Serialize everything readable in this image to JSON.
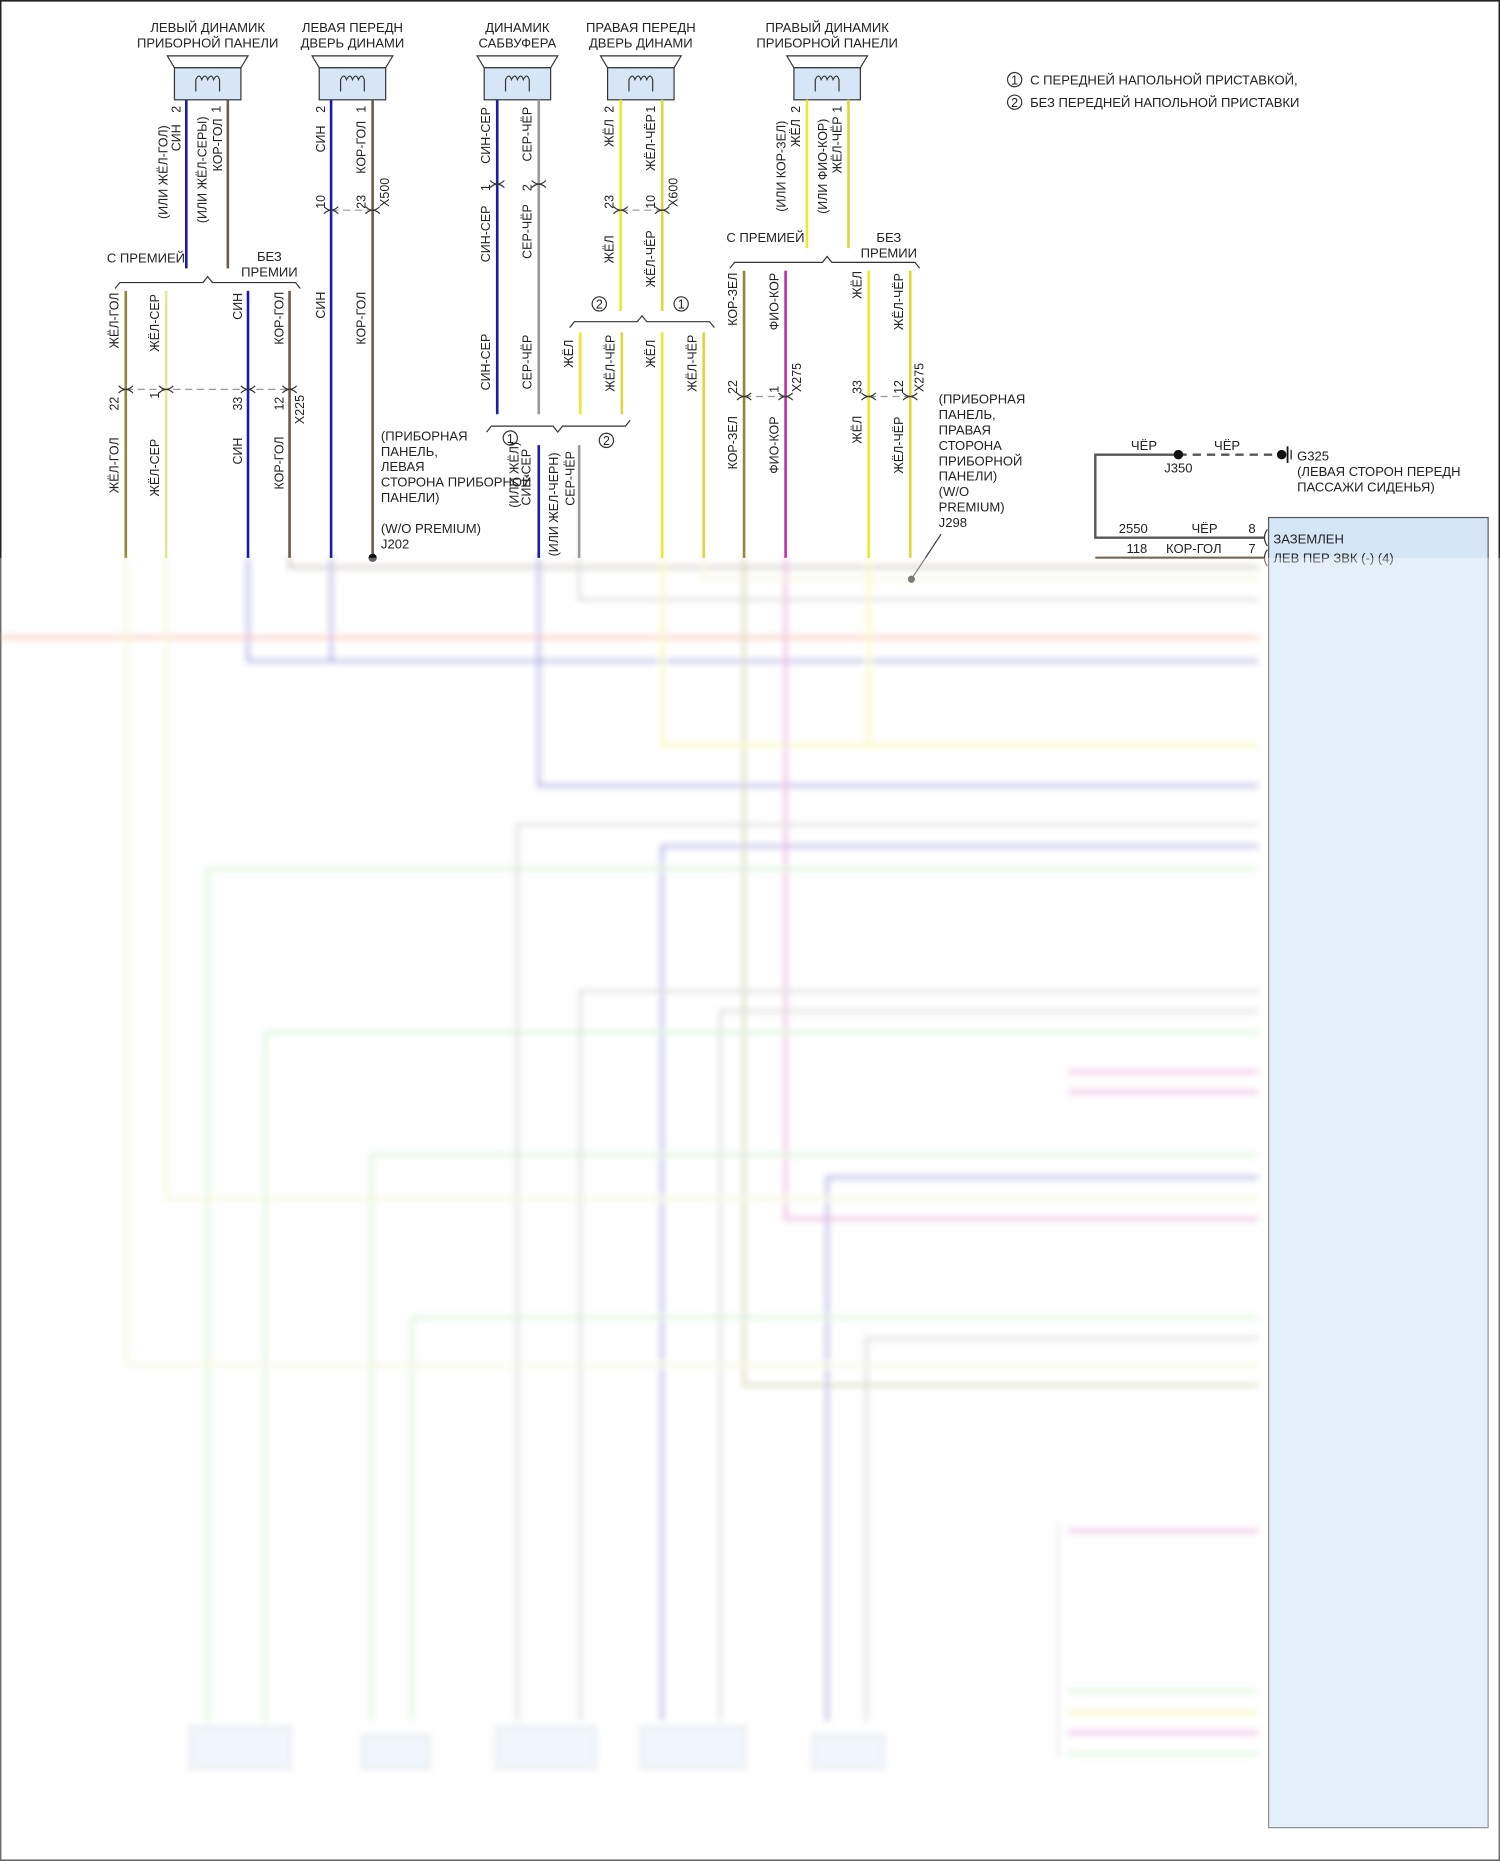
{
  "speakers": [
    {
      "line1": "ЛЕВЫЙ ДИНАМИК",
      "line2": "ПРИБОРНОЙ ПАНЕЛИ"
    },
    {
      "line1": "ЛЕВАЯ ПЕРЕДН",
      "line2": "ДВЕРЬ ДИНАМИ"
    },
    {
      "line1": "ДИНАМИК",
      "line2": "САБВУФЕРА"
    },
    {
      "line1": "ПРАВАЯ ПЕРЕДН",
      "line2": "ДВЕРЬ ДИНАМИ"
    },
    {
      "line1": "ПРАВЫЙ ДИНАМИК",
      "line2": "ПРИБОРНОЙ ПАНЕЛИ"
    }
  ],
  "legend": {
    "n1": "1",
    "t1": "С ПЕРЕДНЕЙ НАПОЛЬНОЙ ПРИСТАВКОЙ,",
    "n2": "2",
    "t2": "БЕЗ ПЕРЕДНЕЙ НАПОЛЬНОЙ ПРИСТАВКИ"
  },
  "options": {
    "premium": "С ПРЕМИЕЙ",
    "no_premium_1": "БЕЗ",
    "no_premium_2": "ПРЕМИИ"
  },
  "pins": {
    "p1": "1",
    "p2": "2",
    "p10": "10",
    "p12": "12",
    "p22": "22",
    "p23": "23",
    "p33": "33"
  },
  "connectors": {
    "x225": "X225",
    "x500": "X500",
    "x600": "X600",
    "x275": "X275"
  },
  "wire_colors": {
    "sin": "СИН",
    "kor_gol": "КОР-ГОЛ",
    "zhel_gol": "ЖЁЛ-ГОЛ",
    "zhel_ser": "ЖЁЛ-СЕР",
    "sin_ser": "СИН-СЕР",
    "ser_cher": "СЕР-ЧЁР",
    "zhel": "ЖЁЛ",
    "zhel_cher": "ЖЁЛ-ЧЁР",
    "kor_zel": "КОР-ЗЕЛ",
    "fio_kor": "ФИО-КОР",
    "cher": "ЧЁР",
    "alt_zhel_gol": "(ИЛИ ЖЁЛ-ГОЛ)",
    "alt_zhel_sery": "(ИЛИ ЖЁЛ-СЕРЫ)",
    "alt_zhel": "(ИЛИ ЖЁЛ)",
    "alt_zhel_chern": "(ИЛИ ЖЕЛ-ЧЕРН)",
    "alt_kor_zel": "(ИЛИ КОР-ЗЕЛ)",
    "alt_fio_kor": "(ИЛИ ФИО-КОР)"
  },
  "splices": {
    "j202": [
      "(ПРИБОРНАЯ",
      "ПАНЕЛЬ,",
      "ЛЕВАЯ",
      "СТОРОНА ПРИБОРНОЙ",
      "ПАНЕЛИ)",
      "(W/O PREMIUM)",
      "J202"
    ],
    "j298": [
      "(ПРИБОРНАЯ",
      "ПАНЕЛЬ,",
      "ПРАВАЯ",
      "СТОРОНА",
      "ПРИБОРНОЙ",
      "ПАНЕЛИ)",
      "(W/O",
      "PREMIUM)",
      "J298"
    ],
    "j350": "J350"
  },
  "ground": {
    "id": "G325",
    "line1": "(ЛЕВАЯ СТОРОН ПЕРЕДН",
    "line2": "ПАССАЖИ СИДЕНЬЯ)"
  },
  "module": {
    "circuit_2550": "2550",
    "pin8": "8",
    "circuit_118": "118",
    "pin7": "7",
    "label_ground": "ЗАЗЕМЛЕН",
    "label_next": "ЛЕВ ПЕР ЗВК (-) (4)"
  },
  "colors": {
    "blue": "#1c1ca8",
    "brown": "#6e5c4c",
    "yellow": "#eaea2c",
    "pale_yellow": "#e4e69c",
    "olive": "#8c8a34",
    "grey": "#9a9a9a",
    "magenta": "#c22ea2",
    "orange": "#ec7c52",
    "green": "#8ed88e",
    "module_fill": "#d6e6f6"
  }
}
